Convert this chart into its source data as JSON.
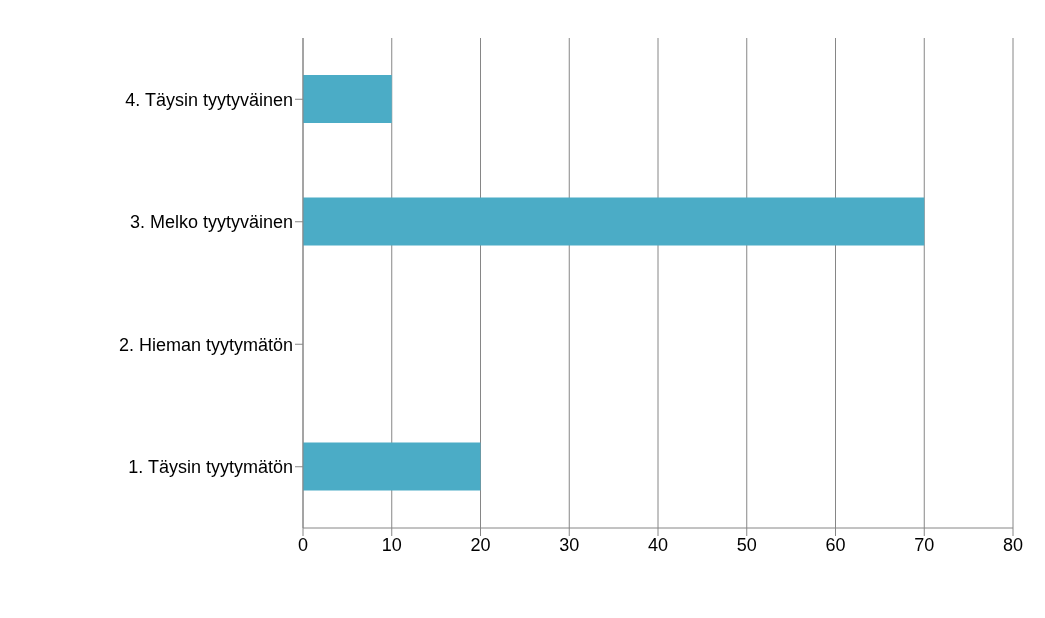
{
  "chart_data": {
    "type": "bar",
    "orientation": "horizontal",
    "categories": [
      "4. Täysin tyytyväinen",
      "3. Melko tyytyväinen",
      "2. Hieman tyytymätön",
      "1. Täysin tyytymätön"
    ],
    "values": [
      10,
      70,
      0,
      20
    ],
    "color": "#4bacc6",
    "xlim": [
      0,
      80
    ],
    "xticks": [
      0,
      10,
      20,
      30,
      40,
      50,
      60,
      70,
      80
    ],
    "grid": "x"
  }
}
